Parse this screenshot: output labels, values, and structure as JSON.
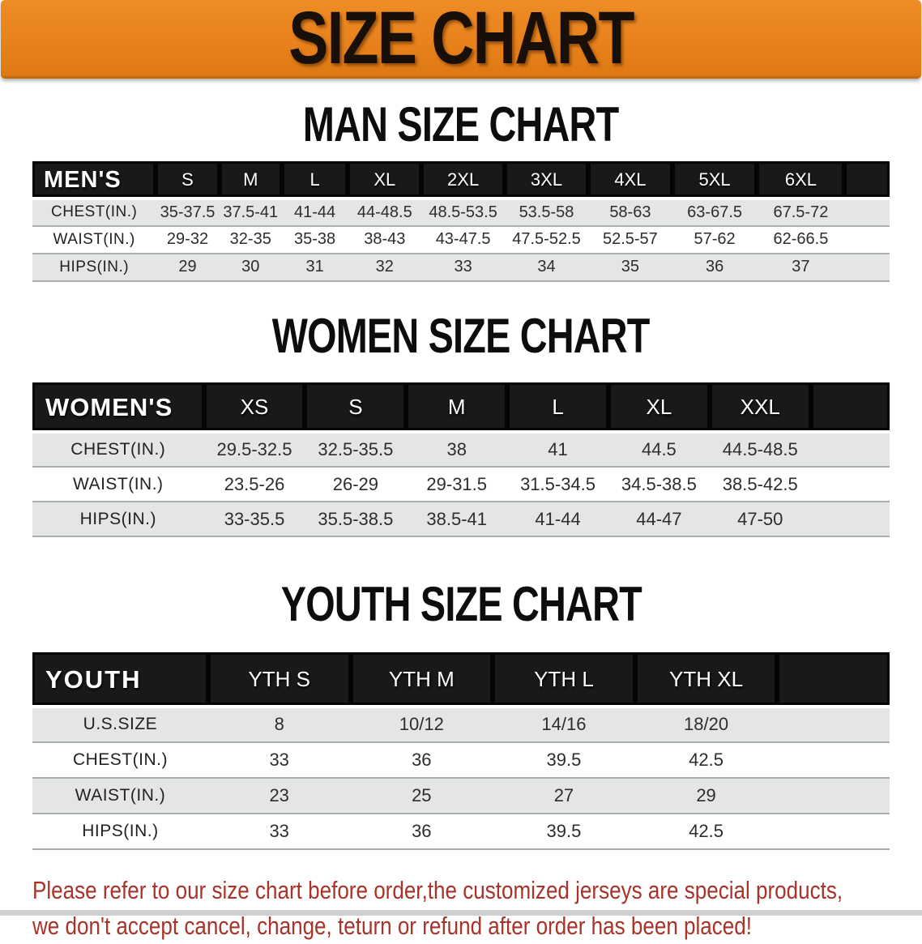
{
  "banner": {
    "title": "SIZE CHART",
    "bg_color": "#e8821c",
    "text_color": "#181008"
  },
  "sections": [
    {
      "heading": "MAN SIZE CHART",
      "corner_label": "MEN'S",
      "columns": [
        "S",
        "M",
        "L",
        "XL",
        "2XL",
        "3XL",
        "4XL",
        "5XL",
        "6XL"
      ],
      "rows": [
        {
          "label": "CHEST(IN.)",
          "values": [
            "35-37.5",
            "37.5-41",
            "41-44",
            "44-48.5",
            "48.5-53.5",
            "53.5-58",
            "58-63",
            "63-67.5",
            "67.5-72"
          ]
        },
        {
          "label": "WAIST(IN.)",
          "values": [
            "29-32",
            "32-35",
            "35-38",
            "38-43",
            "43-47.5",
            "47.5-52.5",
            "52.5-57",
            "57-62",
            "62-66.5"
          ]
        },
        {
          "label": "HIPS(IN.)",
          "values": [
            "29",
            "30",
            "31",
            "32",
            "33",
            "34",
            "35",
            "36",
            "37"
          ]
        }
      ]
    },
    {
      "heading": "WOMEN SIZE CHART",
      "corner_label": "WOMEN'S",
      "columns": [
        "XS",
        "S",
        "M",
        "L",
        "XL",
        "XXL"
      ],
      "rows": [
        {
          "label": "CHEST(IN.)",
          "values": [
            "29.5-32.5",
            "32.5-35.5",
            "38",
            "41",
            "44.5",
            "44.5-48.5"
          ]
        },
        {
          "label": "WAIST(IN.)",
          "values": [
            "23.5-26",
            "26-29",
            "29-31.5",
            "31.5-34.5",
            "34.5-38.5",
            "38.5-42.5"
          ]
        },
        {
          "label": "HIPS(IN.)",
          "values": [
            "33-35.5",
            "35.5-38.5",
            "38.5-41",
            "41-44",
            "44-47",
            "47-50"
          ]
        }
      ]
    },
    {
      "heading": "YOUTH SIZE CHART",
      "corner_label": "YOUTH",
      "columns": [
        "YTH S",
        "YTH M",
        "YTH L",
        "YTH XL"
      ],
      "rows": [
        {
          "label": "U.S.SIZE",
          "values": [
            "8",
            "10/12",
            "14/16",
            "18/20"
          ]
        },
        {
          "label": "CHEST(IN.)",
          "values": [
            "33",
            "36",
            "39.5",
            "42.5"
          ]
        },
        {
          "label": "WAIST(IN.)",
          "values": [
            "23",
            "25",
            "27",
            "29"
          ]
        },
        {
          "label": "HIPS(IN.)",
          "values": [
            "33",
            "36",
            "39.5",
            "42.5"
          ]
        }
      ]
    }
  ],
  "disclaimer": {
    "line1": "Please refer to our size chart before order,the customized jerseys are special products,",
    "line2": "we don't accept cancel, change, teturn or refund after order has been placed!",
    "color": "#a93329"
  },
  "table_colors": {
    "header_bg": "#1b1917",
    "header_text": "#ffffff",
    "row_gray": "#e4e6e5",
    "row_white": "#ffffff"
  }
}
